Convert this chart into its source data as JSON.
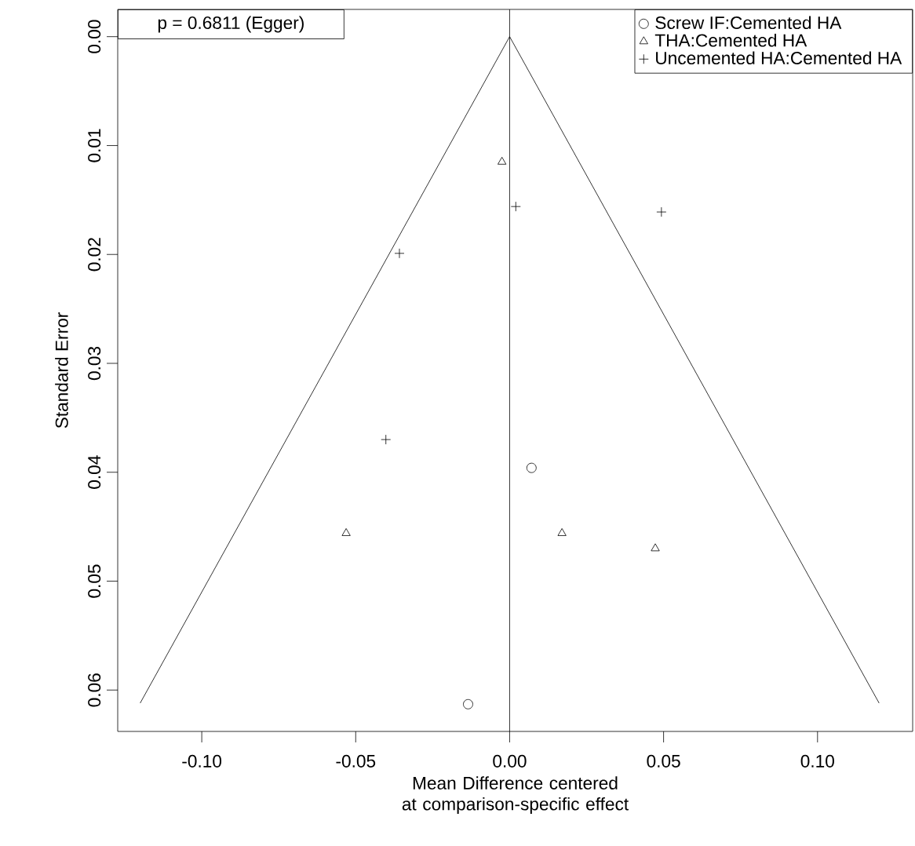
{
  "chart_data": {
    "type": "scatter",
    "xlabel": "Mean Difference centered at comparison-specific effect",
    "ylabel": "Standard Error",
    "annotations": [
      "p = 0.6811 (Egger)"
    ],
    "xlim": [
      -0.1273,
      0.1309
    ],
    "ylim": [
      0.0638,
      -0.0025
    ],
    "xticks": [
      {
        "value": -0.1,
        "label": "-0.10"
      },
      {
        "value": -0.05,
        "label": "-0.05"
      },
      {
        "value": 0,
        "label": "0.00"
      },
      {
        "value": 0.05,
        "label": "0.05"
      },
      {
        "value": 0.1,
        "label": "0.10"
      }
    ],
    "yticks": [
      {
        "value": 0,
        "label": "0.00"
      },
      {
        "value": 0.01,
        "label": "0.01"
      },
      {
        "value": 0.02,
        "label": "0.02"
      },
      {
        "value": 0.03,
        "label": "0.03"
      },
      {
        "value": 0.04,
        "label": "0.04"
      },
      {
        "value": 0.05,
        "label": "0.05"
      },
      {
        "value": 0.06,
        "label": "0.06"
      }
    ],
    "grid": false,
    "legend": "top right",
    "series": [
      {
        "name": "Screw IF:Cemented HA",
        "color": "#000000",
        "marker": "circle",
        "x": [
          0.0071,
          -0.0135
        ],
        "values": [
          0.0396,
          0.0613
        ]
      },
      {
        "name": "THA:Cemented HA",
        "color": "#000000",
        "marker": "triangle",
        "x": [
          -0.0025,
          -0.0531,
          0.017,
          0.0473
        ],
        "values": [
          0.0115,
          0.0456,
          0.0456,
          0.047
        ]
      },
      {
        "name": "Uncemented HA:Cemented HA",
        "color": "#000000",
        "marker": "cross",
        "x": [
          0.002,
          0.0493,
          -0.0358,
          -0.0402
        ],
        "values": [
          0.0156,
          0.0161,
          0.0199,
          0.037
        ]
      },
      {
        "type": "line",
        "color": "#000000",
        "x": [
          -0.12,
          0,
          0.12
        ],
        "values": [
          0.0612,
          0,
          0.0612
        ]
      }
    ],
    "ref_lines": [
      {
        "axis": "x",
        "value": 0,
        "color": "#000000"
      }
    ]
  }
}
